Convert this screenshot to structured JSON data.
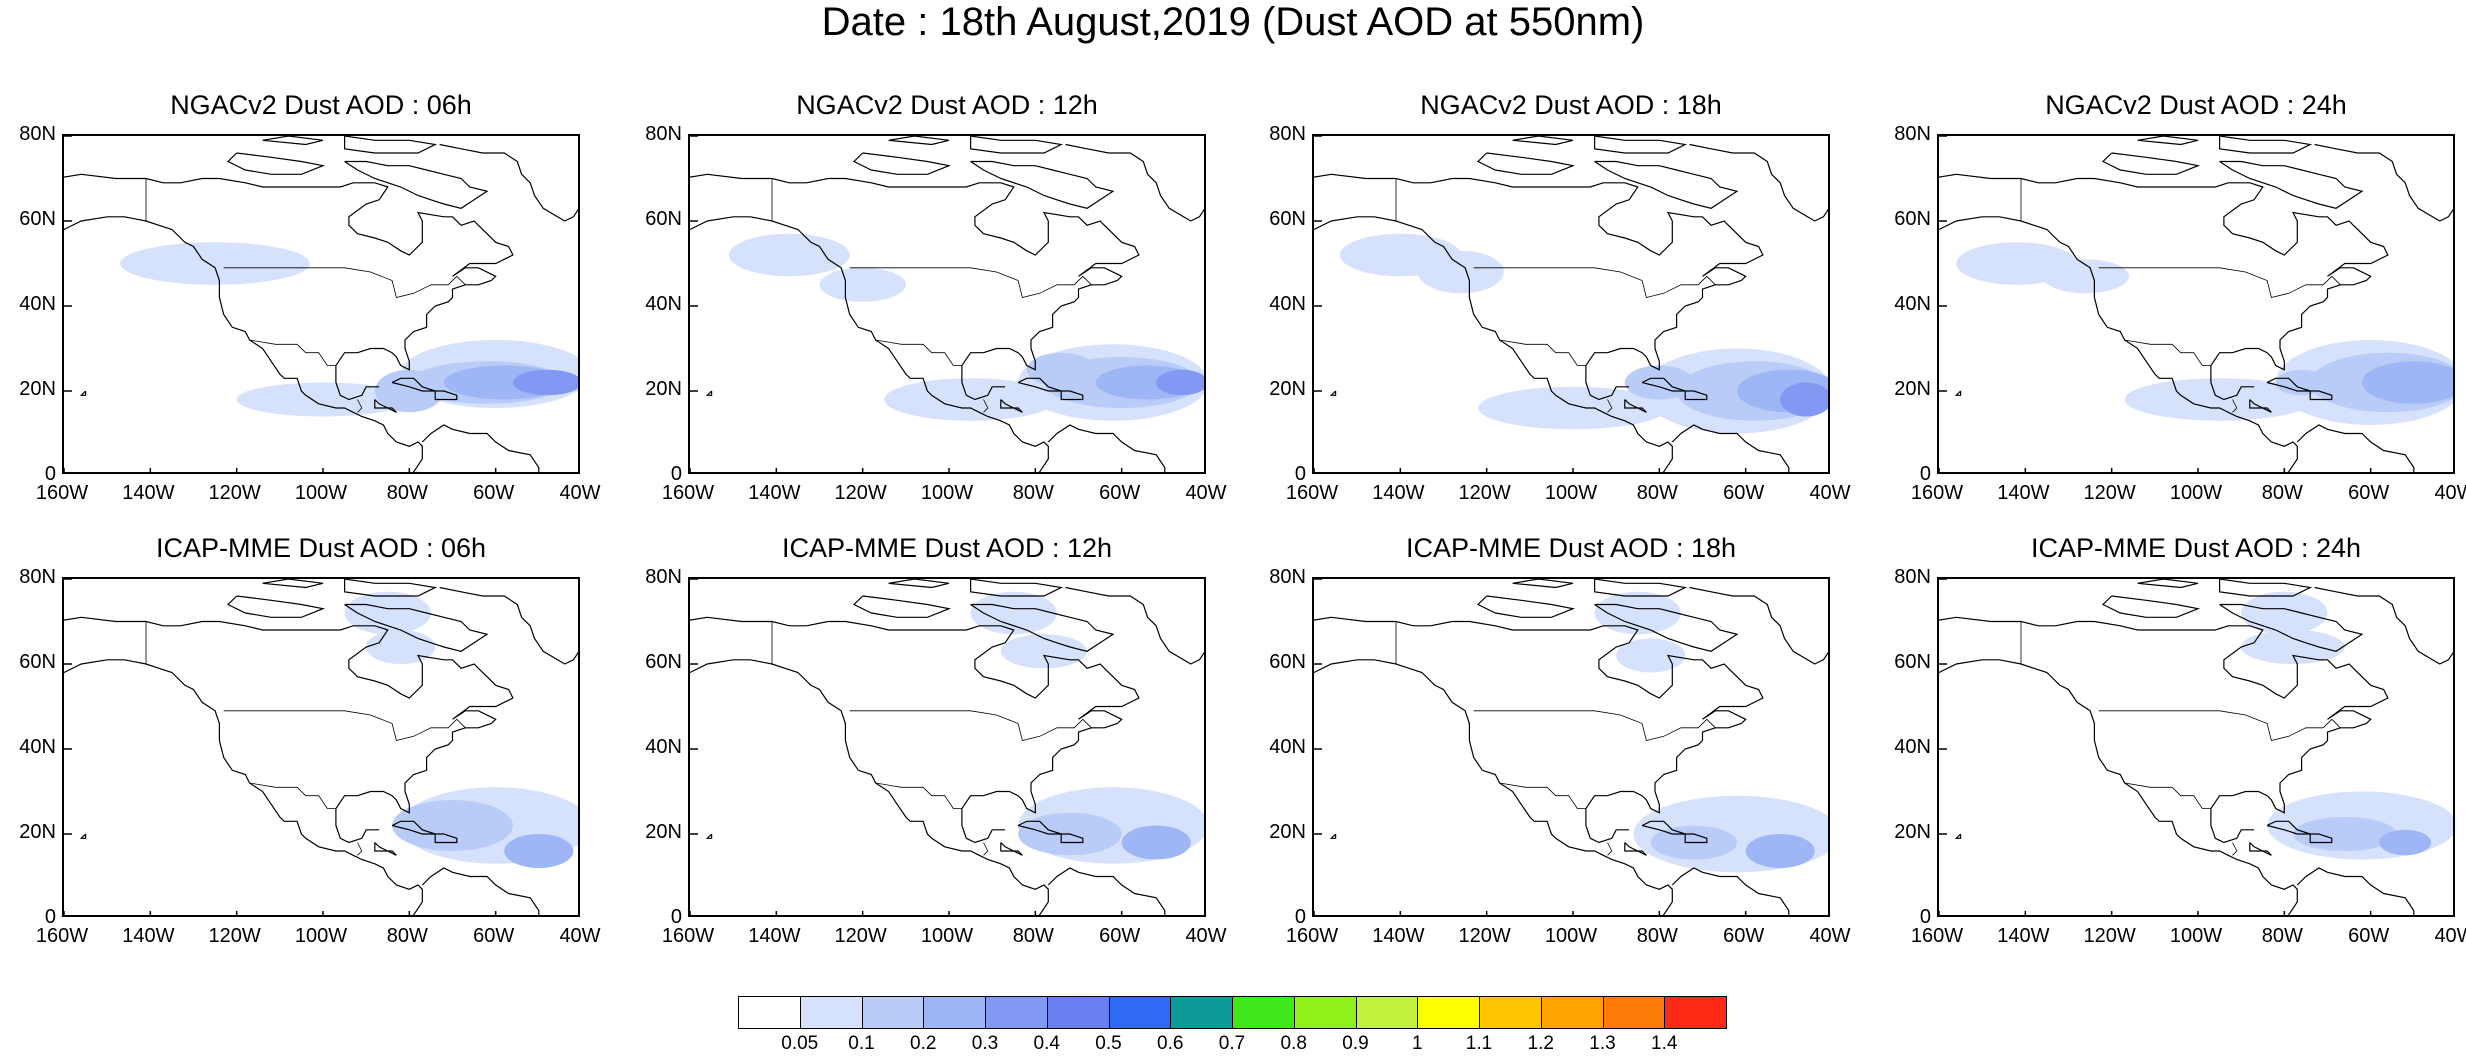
{
  "title": "Date : 18th August,2019 (Dust AOD at 550nm)",
  "y_tick_labels": [
    "80N",
    "60N",
    "40N",
    "20N",
    "0"
  ],
  "x_tick_labels": [
    "160W",
    "140W",
    "120W",
    "100W",
    "80W",
    "60W",
    "40W"
  ],
  "panels": [
    {
      "title": "NGACv2 Dust AOD : 06h",
      "model": "NGACv2",
      "forecast_hour": "06h"
    },
    {
      "title": "NGACv2 Dust AOD : 12h",
      "model": "NGACv2",
      "forecast_hour": "12h"
    },
    {
      "title": "NGACv2 Dust AOD : 18h",
      "model": "NGACv2",
      "forecast_hour": "18h"
    },
    {
      "title": "NGACv2 Dust AOD : 24h",
      "model": "NGACv2",
      "forecast_hour": "24h"
    },
    {
      "title": "ICAP-MME Dust AOD : 06h",
      "model": "ICAP-MME",
      "forecast_hour": "06h"
    },
    {
      "title": "ICAP-MME Dust AOD : 12h",
      "model": "ICAP-MME",
      "forecast_hour": "12h"
    },
    {
      "title": "ICAP-MME Dust AOD : 18h",
      "model": "ICAP-MME",
      "forecast_hour": "18h"
    },
    {
      "title": "ICAP-MME Dust AOD : 24h",
      "model": "ICAP-MME",
      "forecast_hour": "24h"
    }
  ],
  "colorbar": {
    "labels": [
      "0.05",
      "0.1",
      "0.2",
      "0.3",
      "0.4",
      "0.5",
      "0.6",
      "0.7",
      "0.8",
      "0.9",
      "1",
      "1.1",
      "1.2",
      "1.3",
      "1.4"
    ],
    "colors": [
      "#ffffff",
      "#d6e1fb",
      "#b9cbf7",
      "#9eb6f5",
      "#8199f2",
      "#6a7ff0",
      "#2e6bf2",
      "#0e9a97",
      "#3ee81b",
      "#8ef21a",
      "#c2f23d",
      "#ffff00",
      "#ffc400",
      "#ffa300",
      "#ff7b0a",
      "#ff2a14"
    ]
  }
}
